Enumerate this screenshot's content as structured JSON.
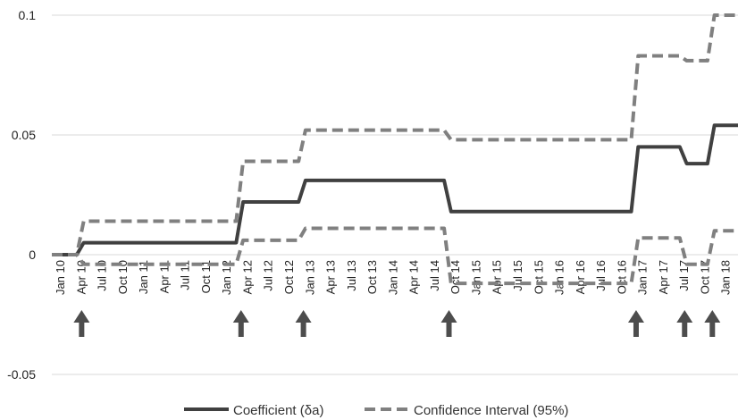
{
  "chart_data": {
    "type": "line",
    "title": "",
    "xlabel": "",
    "ylabel": "",
    "ylim": [
      -0.05,
      0.1
    ],
    "yticks": [
      {
        "value": -0.05,
        "label": "-0.05"
      },
      {
        "value": 0,
        "label": "0"
      },
      {
        "value": 0.05,
        "label": "0.05"
      },
      {
        "value": 0.1,
        "label": "0.1"
      }
    ],
    "grid": true,
    "legend_position": "bottom",
    "x_tick_labels": [
      "Jan 10",
      "Apr 10",
      "Jul 10",
      "Oct 10",
      "Jan 11",
      "Apr 11",
      "Jul 11",
      "Oct 11",
      "Jan 12",
      "Apr 12",
      "Jul 12",
      "Oct 12",
      "Jan 13",
      "Apr 13",
      "Jul 13",
      "Oct 13",
      "Jan 14",
      "Apr 14",
      "Jul 14",
      "Oct 14",
      "Jan 15",
      "Apr 15",
      "Jul 15",
      "Oct 15",
      "Jan 16",
      "Apr 16",
      "Jul 16",
      "Oct 16",
      "Jan 17",
      "Apr 17",
      "Jul 17",
      "Oct 17",
      "Jan 18"
    ],
    "break_markers": [
      "May 10",
      "Apr 12",
      "Jan 13",
      "Oct 14",
      "Jan 17",
      "Aug 17",
      "Dec 17"
    ],
    "series": [
      {
        "name": "Coefficient (δa)",
        "style": "solid",
        "color": "#404040",
        "steps": [
          {
            "start": "Jan 10",
            "value": 0.0
          },
          {
            "start": "May 10",
            "value": 0.005
          },
          {
            "start": "Apr 12",
            "value": 0.022
          },
          {
            "start": "Jan 13",
            "value": 0.031
          },
          {
            "start": "Oct 14",
            "value": 0.018
          },
          {
            "start": "Jan 17",
            "value": 0.045
          },
          {
            "start": "Aug 17",
            "value": 0.038
          },
          {
            "start": "Dec 17",
            "value": 0.054
          }
        ]
      },
      {
        "name": "Confidence Interval (95%)",
        "style": "dashed",
        "color": "#808080",
        "steps": [
          {
            "start": "Jan 10",
            "value": 0.0
          },
          {
            "start": "May 10",
            "value": 0.014
          },
          {
            "start": "Apr 12",
            "value": 0.039
          },
          {
            "start": "Jan 13",
            "value": 0.052
          },
          {
            "start": "Oct 14",
            "value": 0.048
          },
          {
            "start": "Jan 17",
            "value": 0.083
          },
          {
            "start": "Aug 17",
            "value": 0.081
          },
          {
            "start": "Dec 17",
            "value": 0.1
          }
        ]
      },
      {
        "name": "",
        "style": "dashed",
        "color": "#808080",
        "steps": [
          {
            "start": "Jan 10",
            "value": 0.0
          },
          {
            "start": "May 10",
            "value": -0.004
          },
          {
            "start": "Apr 12",
            "value": 0.006
          },
          {
            "start": "Jan 13",
            "value": 0.011
          },
          {
            "start": "Oct 14",
            "value": -0.012
          },
          {
            "start": "Jan 17",
            "value": 0.007
          },
          {
            "start": "Aug 17",
            "value": -0.004
          },
          {
            "start": "Dec 17",
            "value": 0.01
          }
        ]
      }
    ],
    "x_end": "Mar 18"
  }
}
